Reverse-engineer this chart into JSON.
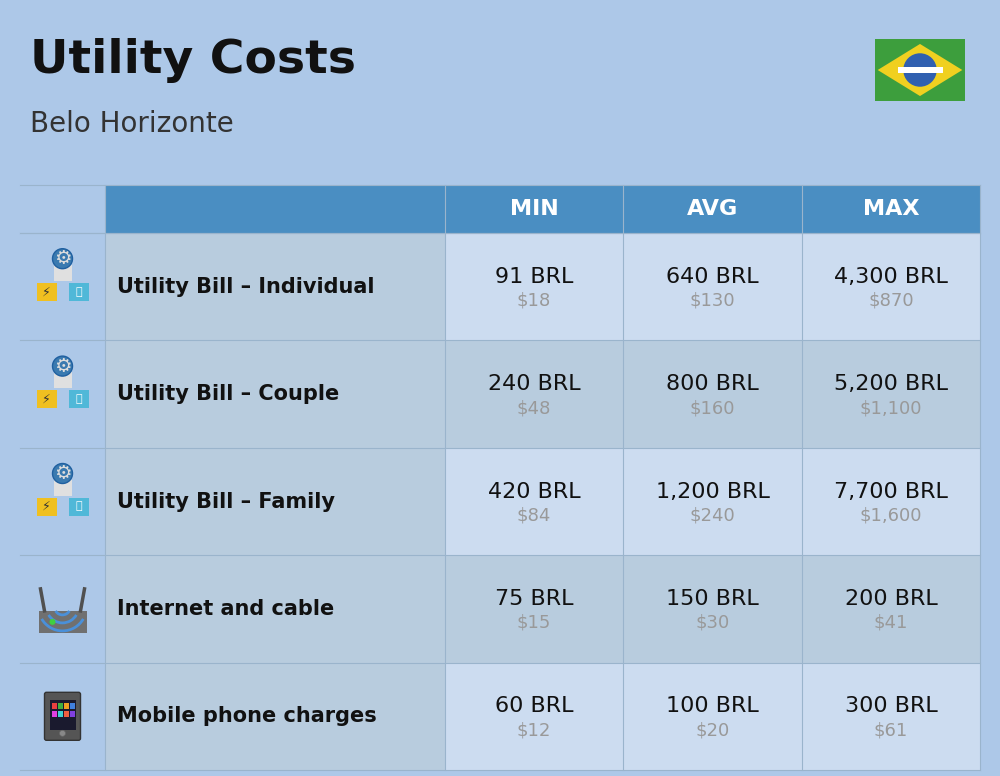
{
  "title": "Utility Costs",
  "subtitle": "Belo Horizonte",
  "background_color": "#adc8e8",
  "header_bg_color": "#4a8ec2",
  "header_text_color": "#ffffff",
  "row_bg_color_1": "#ccdcf0",
  "row_bg_color_2": "#b8ccde",
  "icon_col_bg": "#adc8e8",
  "label_col_bg": "#b8ccde",
  "col_headers": [
    "MIN",
    "AVG",
    "MAX"
  ],
  "rows": [
    {
      "label": "Utility Bill – Individual",
      "min_brl": "91 BRL",
      "min_usd": "$18",
      "avg_brl": "640 BRL",
      "avg_usd": "$130",
      "max_brl": "4,300 BRL",
      "max_usd": "$870"
    },
    {
      "label": "Utility Bill – Couple",
      "min_brl": "240 BRL",
      "min_usd": "$48",
      "avg_brl": "800 BRL",
      "avg_usd": "$160",
      "max_brl": "5,200 BRL",
      "max_usd": "$1,100"
    },
    {
      "label": "Utility Bill – Family",
      "min_brl": "420 BRL",
      "min_usd": "$84",
      "avg_brl": "1,200 BRL",
      "avg_usd": "$240",
      "max_brl": "7,700 BRL",
      "max_usd": "$1,600"
    },
    {
      "label": "Internet and cable",
      "min_brl": "75 BRL",
      "min_usd": "$15",
      "avg_brl": "150 BRL",
      "avg_usd": "$30",
      "max_brl": "200 BRL",
      "max_usd": "$41"
    },
    {
      "label": "Mobile phone charges",
      "min_brl": "60 BRL",
      "min_usd": "$12",
      "avg_brl": "100 BRL",
      "avg_usd": "$20",
      "max_brl": "300 BRL",
      "max_usd": "$61"
    }
  ],
  "title_fontsize": 34,
  "subtitle_fontsize": 20,
  "header_fontsize": 16,
  "label_fontsize": 15,
  "value_fontsize": 16,
  "usd_fontsize": 13,
  "title_color": "#111111",
  "subtitle_color": "#333333",
  "label_color": "#111111",
  "value_color": "#111111",
  "usd_color": "#999999"
}
